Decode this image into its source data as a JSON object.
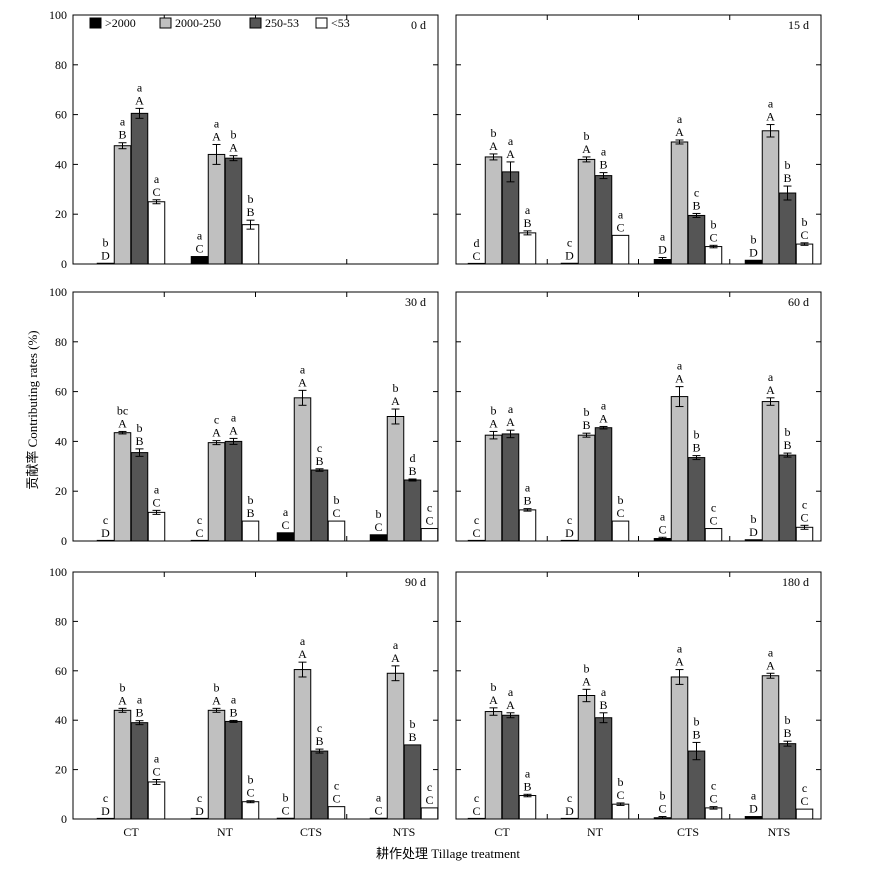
{
  "figure": {
    "ylabel": "贡献率 Contributing rates (%)",
    "xlabel": "耕作处理 Tillage treatment"
  },
  "legend": [
    {
      "name": ">2000",
      "color": "#000000"
    },
    {
      "name": "2000-250",
      "color": "#c0c0c0"
    },
    {
      "name": "250-53",
      "color": "#555555"
    },
    {
      "name": "<53",
      "color": "#ffffff"
    }
  ],
  "chart_data": [
    {
      "type": "bar",
      "title": "0 d",
      "categories": [
        "CT",
        "NT",
        "CTS",
        "NTS"
      ],
      "ylim": [
        0,
        100
      ],
      "yticks": [
        0,
        20,
        40,
        60,
        80,
        100
      ],
      "series": [
        {
          "name": ">2000",
          "values": [
            0.3,
            3.0,
            null,
            null
          ],
          "errors": [
            0,
            0,
            null,
            null
          ],
          "lower": [
            "b",
            "a",
            "",
            ""
          ],
          "upper": [
            "D",
            "C",
            "",
            ""
          ]
        },
        {
          "name": "2000-250",
          "values": [
            47.5,
            44.0,
            null,
            null
          ],
          "errors": [
            1.2,
            4.0,
            null,
            null
          ],
          "lower": [
            "a",
            "a",
            "",
            ""
          ],
          "upper": [
            "B",
            "A",
            "",
            ""
          ]
        },
        {
          "name": "250-53",
          "values": [
            60.5,
            42.5,
            null,
            null
          ],
          "errors": [
            2.0,
            1.0,
            null,
            null
          ],
          "lower": [
            "a",
            "b",
            "",
            ""
          ],
          "upper": [
            "A",
            "A",
            "",
            ""
          ]
        },
        {
          "name": "<53",
          "values": [
            25.0,
            15.8,
            null,
            null
          ],
          "errors": [
            0.8,
            1.8,
            null,
            null
          ],
          "lower": [
            "a",
            "b",
            "",
            ""
          ],
          "upper": [
            "C",
            "B",
            "",
            ""
          ]
        }
      ]
    },
    {
      "type": "bar",
      "title": "15 d",
      "categories": [
        "CT",
        "NT",
        "CTS",
        "NTS"
      ],
      "ylim": [
        0,
        100
      ],
      "yticks": [
        0,
        20,
        40,
        60,
        80,
        100
      ],
      "series": [
        {
          "name": ">2000",
          "values": [
            0.0,
            0.3,
            1.8,
            1.5
          ],
          "errors": [
            0,
            0,
            0.8,
            0
          ],
          "lower": [
            "d",
            "c",
            "a",
            "b"
          ],
          "upper": [
            "C",
            "D",
            "D",
            "D"
          ]
        },
        {
          "name": "2000-250",
          "values": [
            43.0,
            42.0,
            49.0,
            53.5
          ],
          "errors": [
            1.2,
            1.0,
            0.8,
            2.5
          ],
          "lower": [
            "b",
            "b",
            "a",
            "a"
          ],
          "upper": [
            "A",
            "A",
            "A",
            "A"
          ]
        },
        {
          "name": "250-53",
          "values": [
            37.0,
            35.5,
            19.5,
            28.5
          ],
          "errors": [
            4.0,
            1.2,
            0.8,
            2.8
          ],
          "lower": [
            "a",
            "a",
            "c",
            "b"
          ],
          "upper": [
            "A",
            "B",
            "B",
            "B"
          ]
        },
        {
          "name": "<53",
          "values": [
            12.5,
            11.5,
            7.0,
            8.0
          ],
          "errors": [
            0.8,
            0,
            0.5,
            0.5
          ],
          "lower": [
            "a",
            "a",
            "b",
            "b"
          ],
          "upper": [
            "B",
            "C",
            "C",
            "C"
          ]
        }
      ]
    },
    {
      "type": "bar",
      "title": "30 d",
      "categories": [
        "CT",
        "NT",
        "CTS",
        "NTS"
      ],
      "ylim": [
        0,
        100
      ],
      "yticks": [
        0,
        20,
        40,
        60,
        80,
        100
      ],
      "series": [
        {
          "name": ">2000",
          "values": [
            0.0,
            0.0,
            3.3,
            2.5
          ],
          "errors": [
            0,
            0,
            0,
            0
          ],
          "lower": [
            "c",
            "c",
            "a",
            "b"
          ],
          "upper": [
            "D",
            "C",
            "C",
            "C"
          ]
        },
        {
          "name": "2000-250",
          "values": [
            43.5,
            39.5,
            57.5,
            50.0
          ],
          "errors": [
            0.5,
            0.8,
            3.0,
            3.0
          ],
          "lower": [
            "bc",
            "c",
            "a",
            "b"
          ],
          "upper": [
            "A",
            "A",
            "A",
            "A"
          ]
        },
        {
          "name": "250-53",
          "values": [
            35.5,
            40.0,
            28.5,
            24.5
          ],
          "errors": [
            1.5,
            1.2,
            0.5,
            0.4
          ],
          "lower": [
            "b",
            "a",
            "c",
            "d"
          ],
          "upper": [
            "B",
            "A",
            "B",
            "B"
          ]
        },
        {
          "name": "<53",
          "values": [
            11.5,
            8.0,
            8.0,
            5.0
          ],
          "errors": [
            0.8,
            0,
            0,
            0
          ],
          "lower": [
            "a",
            "b",
            "b",
            "c"
          ],
          "upper": [
            "C",
            "B",
            "C",
            "C"
          ]
        }
      ]
    },
    {
      "type": "bar",
      "title": "60 d",
      "categories": [
        "CT",
        "NT",
        "CTS",
        "NTS"
      ],
      "ylim": [
        0,
        100
      ],
      "yticks": [
        0,
        20,
        40,
        60,
        80,
        100
      ],
      "series": [
        {
          "name": ">2000",
          "values": [
            0.0,
            0.0,
            1.0,
            0.5
          ],
          "errors": [
            0,
            0,
            0.5,
            0
          ],
          "lower": [
            "c",
            "c",
            "a",
            "b"
          ],
          "upper": [
            "C",
            "D",
            "C",
            "D"
          ]
        },
        {
          "name": "2000-250",
          "values": [
            42.5,
            42.5,
            58.0,
            56.0
          ],
          "errors": [
            1.5,
            0.8,
            4.0,
            1.5
          ],
          "lower": [
            "b",
            "b",
            "a",
            "a"
          ],
          "upper": [
            "A",
            "B",
            "A",
            "A"
          ]
        },
        {
          "name": "250-53",
          "values": [
            43.0,
            45.5,
            33.5,
            34.5
          ],
          "errors": [
            1.5,
            0.5,
            0.8,
            0.8
          ],
          "lower": [
            "a",
            "a",
            "b",
            "b"
          ],
          "upper": [
            "A",
            "A",
            "B",
            "B"
          ]
        },
        {
          "name": "<53",
          "values": [
            12.5,
            8.0,
            5.0,
            5.5
          ],
          "errors": [
            0.5,
            0,
            0,
            0.8
          ],
          "lower": [
            "a",
            "b",
            "c",
            "c"
          ],
          "upper": [
            "B",
            "C",
            "C",
            "C"
          ]
        }
      ]
    },
    {
      "type": "bar",
      "title": "90 d",
      "categories": [
        "CT",
        "NT",
        "CTS",
        "NTS"
      ],
      "ylim": [
        0,
        100
      ],
      "yticks": [
        0,
        20,
        40,
        60,
        80,
        100
      ],
      "series": [
        {
          "name": ">2000",
          "values": [
            0.0,
            0.0,
            0.3,
            0.3
          ],
          "errors": [
            0,
            0,
            0,
            0
          ],
          "lower": [
            "c",
            "c",
            "b",
            "a"
          ],
          "upper": [
            "D",
            "D",
            "C",
            "C"
          ]
        },
        {
          "name": "2000-250",
          "values": [
            44.0,
            44.0,
            60.5,
            59.0
          ],
          "errors": [
            0.8,
            0.8,
            3.0,
            3.0
          ],
          "lower": [
            "b",
            "b",
            "a",
            "a"
          ],
          "upper": [
            "A",
            "A",
            "A",
            "A"
          ]
        },
        {
          "name": "250-53",
          "values": [
            39.0,
            39.5,
            27.5,
            30.0
          ],
          "errors": [
            0.8,
            0.4,
            0.8,
            0
          ],
          "lower": [
            "a",
            "a",
            "c",
            "b"
          ],
          "upper": [
            "B",
            "B",
            "B",
            "B"
          ]
        },
        {
          "name": "<53",
          "values": [
            15.0,
            7.0,
            5.0,
            4.5
          ],
          "errors": [
            1.0,
            0.4,
            0,
            0
          ],
          "lower": [
            "a",
            "b",
            "c",
            "c"
          ],
          "upper": [
            "C",
            "C",
            "C",
            "C"
          ]
        }
      ]
    },
    {
      "type": "bar",
      "title": "180 d",
      "categories": [
        "CT",
        "NT",
        "CTS",
        "NTS"
      ],
      "ylim": [
        0,
        100
      ],
      "yticks": [
        0,
        20,
        40,
        60,
        80,
        100
      ],
      "series": [
        {
          "name": ">2000",
          "values": [
            0.0,
            0.0,
            0.5,
            1.0
          ],
          "errors": [
            0,
            0,
            0.5,
            0
          ],
          "lower": [
            "c",
            "c",
            "b",
            "a"
          ],
          "upper": [
            "C",
            "D",
            "C",
            "D"
          ]
        },
        {
          "name": "2000-250",
          "values": [
            43.5,
            50.0,
            57.5,
            58.0
          ],
          "errors": [
            1.5,
            2.5,
            3.0,
            1.0
          ],
          "lower": [
            "b",
            "b",
            "a",
            "a"
          ],
          "upper": [
            "A",
            "A",
            "A",
            "A"
          ]
        },
        {
          "name": "250-53",
          "values": [
            42.0,
            41.0,
            27.5,
            30.5
          ],
          "errors": [
            1.0,
            2.0,
            3.5,
            1.0
          ],
          "lower": [
            "a",
            "a",
            "b",
            "b"
          ],
          "upper": [
            "A",
            "B",
            "B",
            "B"
          ]
        },
        {
          "name": "<53",
          "values": [
            9.5,
            6.0,
            4.5,
            4.0
          ],
          "errors": [
            0.5,
            0.5,
            0.5,
            0
          ],
          "lower": [
            "a",
            "b",
            "c",
            "c"
          ],
          "upper": [
            "B",
            "C",
            "C",
            "C"
          ]
        }
      ]
    }
  ]
}
